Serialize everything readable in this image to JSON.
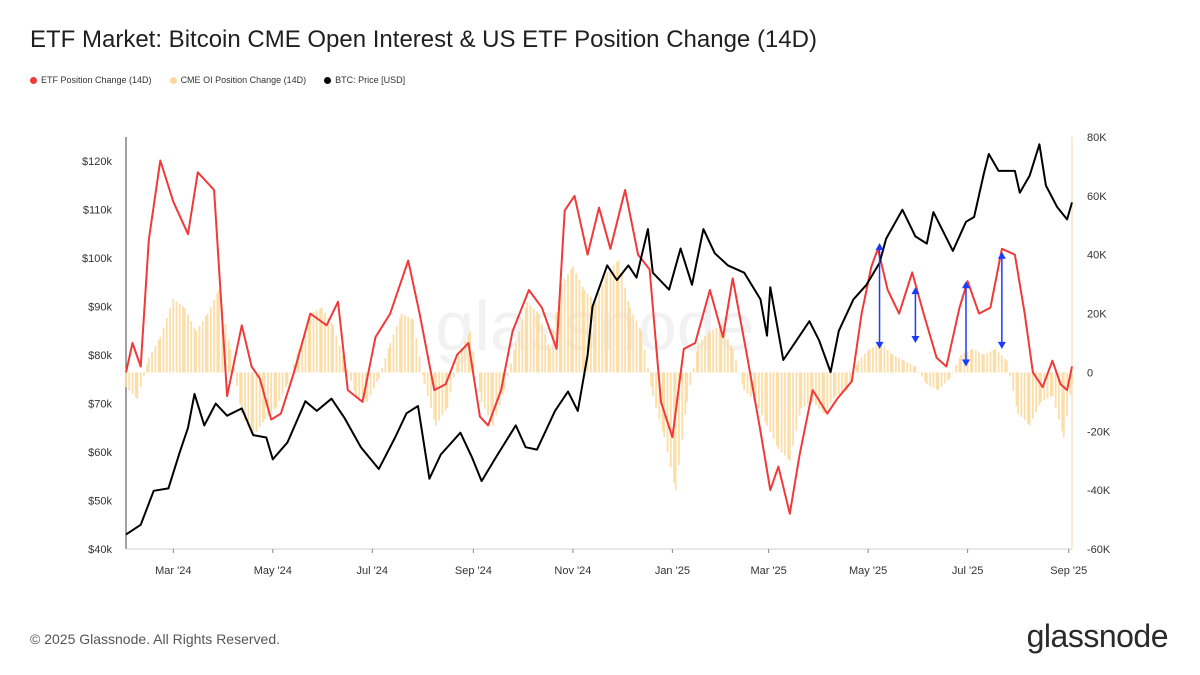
{
  "title": "ETF Market: Bitcoin CME Open Interest & US ETF Position Change (14D)",
  "legend": [
    {
      "label": "ETF Position Change (14D)",
      "color": "#f03a3a"
    },
    {
      "label": "CME OI Position Change (14D)",
      "color": "#fcd89a"
    },
    {
      "label": "BTC: Price [USD]",
      "color": "#000000"
    }
  ],
  "footer": "© 2025 Glassnode. All Rights Reserved.",
  "logo": "glassnode",
  "watermark": "glassnode",
  "chart_data": {
    "type": "line",
    "x_ticks": [
      "Mar '24",
      "May '24",
      "Jul '24",
      "Sep '24",
      "Nov '24",
      "Jan '25",
      "Mar '25",
      "May '25",
      "Jul '25",
      "Sep '25"
    ],
    "x_range": [
      "2024-02-01",
      "2025-09-03"
    ],
    "y_left": {
      "label": "",
      "ticks": [
        "$40k",
        "$50k",
        "$60k",
        "$70k",
        "$80k",
        "$90k",
        "$100k",
        "$110k",
        "$120k"
      ],
      "range": [
        40000,
        125000
      ]
    },
    "y_right": {
      "label": "",
      "ticks": [
        "-60K",
        "-40K",
        "-20K",
        "0",
        "20K",
        "40K",
        "60K",
        "80K"
      ],
      "range": [
        -60000,
        80000
      ]
    },
    "grid": false,
    "legend_position": "top-left",
    "series": [
      {
        "name": "BTC: Price [USD]",
        "axis": "left",
        "style": "line",
        "color": "#000000",
        "points": [
          [
            "2024-02-01",
            43000
          ],
          [
            "2024-02-10",
            45000
          ],
          [
            "2024-02-18",
            52000
          ],
          [
            "2024-02-27",
            52500
          ],
          [
            "2024-03-05",
            60000
          ],
          [
            "2024-03-10",
            65000
          ],
          [
            "2024-03-14",
            72000
          ],
          [
            "2024-03-20",
            65500
          ],
          [
            "2024-03-27",
            70000
          ],
          [
            "2024-04-03",
            67500
          ],
          [
            "2024-04-12",
            69000
          ],
          [
            "2024-04-19",
            63500
          ],
          [
            "2024-04-27",
            63000
          ],
          [
            "2024-05-01",
            58500
          ],
          [
            "2024-05-10",
            62000
          ],
          [
            "2024-05-21",
            70500
          ],
          [
            "2024-05-28",
            68500
          ],
          [
            "2024-06-06",
            71000
          ],
          [
            "2024-06-14",
            67000
          ],
          [
            "2024-06-24",
            61000
          ],
          [
            "2024-07-05",
            56500
          ],
          [
            "2024-07-15",
            63000
          ],
          [
            "2024-07-22",
            68000
          ],
          [
            "2024-07-29",
            69500
          ],
          [
            "2024-08-05",
            54500
          ],
          [
            "2024-08-12",
            59500
          ],
          [
            "2024-08-24",
            64000
          ],
          [
            "2024-08-31",
            59000
          ],
          [
            "2024-09-06",
            54000
          ],
          [
            "2024-09-15",
            59000
          ],
          [
            "2024-09-27",
            65500
          ],
          [
            "2024-10-03",
            61000
          ],
          [
            "2024-10-10",
            60500
          ],
          [
            "2024-10-21",
            68500
          ],
          [
            "2024-10-29",
            72500
          ],
          [
            "2024-11-04",
            68500
          ],
          [
            "2024-11-10",
            80000
          ],
          [
            "2024-11-13",
            90000
          ],
          [
            "2024-11-22",
            98500
          ],
          [
            "2024-11-28",
            95500
          ],
          [
            "2024-12-05",
            98500
          ],
          [
            "2024-12-10",
            96000
          ],
          [
            "2024-12-17",
            106000
          ],
          [
            "2024-12-20",
            97000
          ],
          [
            "2024-12-30",
            93500
          ],
          [
            "2025-01-06",
            102000
          ],
          [
            "2025-01-13",
            94500
          ],
          [
            "2025-01-20",
            106000
          ],
          [
            "2025-01-27",
            101000
          ],
          [
            "2025-02-04",
            98500
          ],
          [
            "2025-02-14",
            97000
          ],
          [
            "2025-02-24",
            91500
          ],
          [
            "2025-02-28",
            84000
          ],
          [
            "2025-03-02",
            94000
          ],
          [
            "2025-03-10",
            79000
          ],
          [
            "2025-03-18",
            83000
          ],
          [
            "2025-03-26",
            87000
          ],
          [
            "2025-04-01",
            83000
          ],
          [
            "2025-04-08",
            76500
          ],
          [
            "2025-04-13",
            85000
          ],
          [
            "2025-04-22",
            91500
          ],
          [
            "2025-04-30",
            94500
          ],
          [
            "2025-05-08",
            99000
          ],
          [
            "2025-05-12",
            104000
          ],
          [
            "2025-05-22",
            110000
          ],
          [
            "2025-05-30",
            104500
          ],
          [
            "2025-06-06",
            103000
          ],
          [
            "2025-06-10",
            109500
          ],
          [
            "2025-06-22",
            101500
          ],
          [
            "2025-06-30",
            107500
          ],
          [
            "2025-07-05",
            108500
          ],
          [
            "2025-07-11",
            117500
          ],
          [
            "2025-07-14",
            121500
          ],
          [
            "2025-07-20",
            118000
          ],
          [
            "2025-07-30",
            118000
          ],
          [
            "2025-08-02",
            113500
          ],
          [
            "2025-08-08",
            117000
          ],
          [
            "2025-08-14",
            123500
          ],
          [
            "2025-08-18",
            115000
          ],
          [
            "2025-08-25",
            110500
          ],
          [
            "2025-08-31",
            108000
          ],
          [
            "2025-09-03",
            111500
          ]
        ]
      },
      {
        "name": "ETF Position Change (14D)",
        "axis": "right",
        "style": "line",
        "color": "#f03a3a",
        "points": [
          [
            "2024-02-01",
            0
          ],
          [
            "2024-02-05",
            10000
          ],
          [
            "2024-02-10",
            2000
          ],
          [
            "2024-02-15",
            45000
          ],
          [
            "2024-02-22",
            72000
          ],
          [
            "2024-03-01",
            58000
          ],
          [
            "2024-03-10",
            47000
          ],
          [
            "2024-03-16",
            68000
          ],
          [
            "2024-03-26",
            62000
          ],
          [
            "2024-04-03",
            -8000
          ],
          [
            "2024-04-12",
            16000
          ],
          [
            "2024-04-18",
            2000
          ],
          [
            "2024-04-23",
            -2000
          ],
          [
            "2024-04-30",
            -16000
          ],
          [
            "2024-05-06",
            -14000
          ],
          [
            "2024-05-14",
            0
          ],
          [
            "2024-05-24",
            20000
          ],
          [
            "2024-06-03",
            16000
          ],
          [
            "2024-06-10",
            24000
          ],
          [
            "2024-06-16",
            -6000
          ],
          [
            "2024-06-25",
            -10000
          ],
          [
            "2024-07-03",
            12000
          ],
          [
            "2024-07-12",
            20000
          ],
          [
            "2024-07-23",
            38000
          ],
          [
            "2024-07-30",
            20000
          ],
          [
            "2024-08-08",
            -6000
          ],
          [
            "2024-08-15",
            -4000
          ],
          [
            "2024-08-22",
            6000
          ],
          [
            "2024-08-29",
            10000
          ],
          [
            "2024-09-05",
            -15000
          ],
          [
            "2024-09-10",
            -18000
          ],
          [
            "2024-09-18",
            -6000
          ],
          [
            "2024-09-25",
            14000
          ],
          [
            "2024-10-05",
            28000
          ],
          [
            "2024-10-13",
            22000
          ],
          [
            "2024-10-22",
            8000
          ],
          [
            "2024-10-27",
            55000
          ],
          [
            "2024-11-02",
            60000
          ],
          [
            "2024-11-10",
            40000
          ],
          [
            "2024-11-17",
            56000
          ],
          [
            "2024-11-24",
            42000
          ],
          [
            "2024-12-03",
            62000
          ],
          [
            "2024-12-11",
            40000
          ],
          [
            "2024-12-18",
            35000
          ],
          [
            "2024-12-25",
            -10000
          ],
          [
            "2025-01-01",
            -22000
          ],
          [
            "2025-01-08",
            8000
          ],
          [
            "2025-01-15",
            10000
          ],
          [
            "2025-01-24",
            28000
          ],
          [
            "2025-02-01",
            12000
          ],
          [
            "2025-02-07",
            32000
          ],
          [
            "2025-02-15",
            8000
          ],
          [
            "2025-02-24",
            -20000
          ],
          [
            "2025-03-02",
            -40000
          ],
          [
            "2025-03-07",
            -32000
          ],
          [
            "2025-03-14",
            -48000
          ],
          [
            "2025-03-20",
            -28000
          ],
          [
            "2025-03-28",
            -6000
          ],
          [
            "2025-04-06",
            -14000
          ],
          [
            "2025-04-12",
            -9000
          ],
          [
            "2025-04-21",
            -3000
          ],
          [
            "2025-04-27",
            20000
          ],
          [
            "2025-05-03",
            36000
          ],
          [
            "2025-05-07",
            42000
          ],
          [
            "2025-05-13",
            28000
          ],
          [
            "2025-05-20",
            20000
          ],
          [
            "2025-05-28",
            34000
          ],
          [
            "2025-06-04",
            20000
          ],
          [
            "2025-06-12",
            5000
          ],
          [
            "2025-06-18",
            2000
          ],
          [
            "2025-06-26",
            22000
          ],
          [
            "2025-07-01",
            31000
          ],
          [
            "2025-07-08",
            20000
          ],
          [
            "2025-07-15",
            22000
          ],
          [
            "2025-07-22",
            42000
          ],
          [
            "2025-07-30",
            40000
          ],
          [
            "2025-08-05",
            20000
          ],
          [
            "2025-08-10",
            0
          ],
          [
            "2025-08-16",
            -5000
          ],
          [
            "2025-08-22",
            4000
          ],
          [
            "2025-08-27",
            -4000
          ],
          [
            "2025-08-31",
            -6000
          ],
          [
            "2025-09-03",
            2000
          ]
        ]
      },
      {
        "name": "CME OI Position Change (14D)",
        "axis": "right",
        "style": "bar",
        "color": "#fcd89a",
        "points": [
          [
            "2024-02-01",
            -5000
          ],
          [
            "2024-02-08",
            -9000
          ],
          [
            "2024-02-15",
            5000
          ],
          [
            "2024-02-22",
            12000
          ],
          [
            "2024-03-01",
            25000
          ],
          [
            "2024-03-08",
            22000
          ],
          [
            "2024-03-15",
            14000
          ],
          [
            "2024-03-22",
            20000
          ],
          [
            "2024-03-29",
            28000
          ],
          [
            "2024-04-05",
            8000
          ],
          [
            "2024-04-12",
            -14000
          ],
          [
            "2024-04-19",
            -22000
          ],
          [
            "2024-04-26",
            -16000
          ],
          [
            "2024-05-03",
            -12000
          ],
          [
            "2024-05-10",
            -4000
          ],
          [
            "2024-05-17",
            8000
          ],
          [
            "2024-05-24",
            20000
          ],
          [
            "2024-05-31",
            22000
          ],
          [
            "2024-06-07",
            16000
          ],
          [
            "2024-06-14",
            4000
          ],
          [
            "2024-06-21",
            -8000
          ],
          [
            "2024-06-28",
            -10000
          ],
          [
            "2024-07-05",
            -2000
          ],
          [
            "2024-07-12",
            10000
          ],
          [
            "2024-07-19",
            20000
          ],
          [
            "2024-07-26",
            18000
          ],
          [
            "2024-08-02",
            -4000
          ],
          [
            "2024-08-09",
            -18000
          ],
          [
            "2024-08-16",
            -12000
          ],
          [
            "2024-08-23",
            6000
          ],
          [
            "2024-08-30",
            14000
          ],
          [
            "2024-09-06",
            -10000
          ],
          [
            "2024-09-13",
            -18000
          ],
          [
            "2024-09-20",
            -6000
          ],
          [
            "2024-09-27",
            10000
          ],
          [
            "2024-10-04",
            24000
          ],
          [
            "2024-10-11",
            20000
          ],
          [
            "2024-10-18",
            8000
          ],
          [
            "2024-10-25",
            30000
          ],
          [
            "2024-11-01",
            36000
          ],
          [
            "2024-11-08",
            28000
          ],
          [
            "2024-11-15",
            24000
          ],
          [
            "2024-11-22",
            34000
          ],
          [
            "2024-11-29",
            38000
          ],
          [
            "2024-12-06",
            22000
          ],
          [
            "2024-12-13",
            14000
          ],
          [
            "2024-12-20",
            -8000
          ],
          [
            "2024-12-27",
            -22000
          ],
          [
            "2025-01-03",
            -40000
          ],
          [
            "2025-01-10",
            -10000
          ],
          [
            "2025-01-17",
            10000
          ],
          [
            "2025-01-24",
            14000
          ],
          [
            "2025-01-31",
            16000
          ],
          [
            "2025-02-07",
            8000
          ],
          [
            "2025-02-14",
            -6000
          ],
          [
            "2025-02-21",
            -10000
          ],
          [
            "2025-02-28",
            -18000
          ],
          [
            "2025-03-07",
            -26000
          ],
          [
            "2025-03-14",
            -30000
          ],
          [
            "2025-03-21",
            -12000
          ],
          [
            "2025-03-28",
            -10000
          ],
          [
            "2025-04-04",
            -14000
          ],
          [
            "2025-04-11",
            -8000
          ],
          [
            "2025-04-18",
            -6000
          ],
          [
            "2025-04-25",
            4000
          ],
          [
            "2025-05-02",
            8000
          ],
          [
            "2025-05-09",
            10000
          ],
          [
            "2025-05-16",
            6000
          ],
          [
            "2025-05-23",
            4000
          ],
          [
            "2025-05-30",
            2000
          ],
          [
            "2025-06-06",
            -4000
          ],
          [
            "2025-06-13",
            -6000
          ],
          [
            "2025-06-20",
            -2000
          ],
          [
            "2025-06-27",
            6000
          ],
          [
            "2025-07-04",
            8000
          ],
          [
            "2025-07-11",
            6000
          ],
          [
            "2025-07-18",
            8000
          ],
          [
            "2025-07-25",
            4000
          ],
          [
            "2025-08-01",
            -14000
          ],
          [
            "2025-08-08",
            -18000
          ],
          [
            "2025-08-15",
            -10000
          ],
          [
            "2025-08-22",
            -8000
          ],
          [
            "2025-08-29",
            -22000
          ],
          [
            "2025-09-03",
            -4000
          ]
        ]
      }
    ],
    "annotations": [
      {
        "type": "double-arrow",
        "color": "#1a3cff",
        "x": "2025-05-08",
        "y_top": 44000,
        "y_bottom": 8000
      },
      {
        "type": "double-arrow",
        "color": "#1a3cff",
        "x": "2025-05-30",
        "y_top": 29000,
        "y_bottom": 10000
      },
      {
        "type": "double-arrow",
        "color": "#1a3cff",
        "x": "2025-06-30",
        "y_top": 31000,
        "y_bottom": 2000
      },
      {
        "type": "double-arrow",
        "color": "#1a3cff",
        "x": "2025-07-22",
        "y_top": 41000,
        "y_bottom": 8000
      }
    ]
  }
}
